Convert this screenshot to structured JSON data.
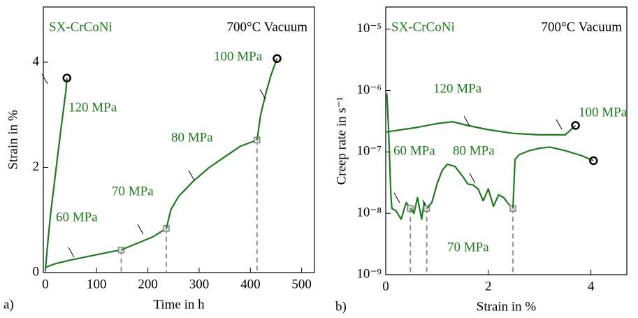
{
  "chart_data": [
    {
      "type": "line",
      "panel_label": "a)",
      "annotations": [
        "SX-CrCoNi",
        "700°C Vacuum"
      ],
      "x_label": "Time in h",
      "y_label": "Strain in %",
      "xlim": [
        -4,
        525
      ],
      "ylim": [
        0,
        5.05
      ],
      "xticks": [
        0,
        100,
        200,
        300,
        400,
        500
      ],
      "yticks": [
        0,
        2,
        4
      ],
      "log_y": false,
      "series": [
        {
          "name": "120 MPa",
          "color": "#1f7a1f",
          "marker": "circle",
          "x": [
            0,
            5,
            10,
            20,
            30,
            40,
            42
          ],
          "values": [
            0.05,
            0.6,
            1.1,
            1.9,
            2.7,
            3.45,
            3.7
          ]
        },
        {
          "name": "60 MPa",
          "color": "#1f7a1f",
          "marker": "square",
          "x": [
            0,
            20,
            50,
            80,
            110,
            130,
            148
          ],
          "values": [
            0.1,
            0.17,
            0.24,
            0.3,
            0.36,
            0.4,
            0.43
          ]
        },
        {
          "name": "70 MPa",
          "color": "#1f7a1f",
          "marker": "square",
          "x": [
            148,
            170,
            190,
            210,
            236
          ],
          "values": [
            0.43,
            0.52,
            0.6,
            0.68,
            0.84
          ]
        },
        {
          "name": "80 MPa",
          "color": "#1f7a1f",
          "marker": "square",
          "x": [
            236,
            245,
            260,
            290,
            320,
            350,
            380,
            413
          ],
          "values": [
            0.84,
            1.2,
            1.45,
            1.75,
            2.0,
            2.2,
            2.4,
            2.52
          ]
        },
        {
          "name": "100 MPa",
          "color": "#1f7a1f",
          "marker": "circle",
          "x": [
            413,
            420,
            430,
            440,
            452
          ],
          "values": [
            2.52,
            3.0,
            3.4,
            3.75,
            4.07
          ]
        }
      ]
    },
    {
      "type": "line",
      "panel_label": "b)",
      "annotations": [
        "SX-CrCoNi",
        "700°C Vacuum"
      ],
      "x_label": "Strain in %",
      "y_label": "Creep rate in s⁻¹",
      "xlim": [
        0,
        4.7
      ],
      "ylim": [
        1e-09,
        2.3e-05
      ],
      "xticks": [
        0,
        2,
        4
      ],
      "log_y": true,
      "yticks": [
        {
          "value": 1e-09,
          "label": "10⁻⁹"
        },
        {
          "value": 1e-08,
          "label": "10⁻⁸"
        },
        {
          "value": 1e-07,
          "label": "10⁻⁷"
        },
        {
          "value": 1e-06,
          "label": "10⁻⁶"
        },
        {
          "value": 1e-05,
          "label": "10⁻⁵"
        }
      ],
      "series": [
        {
          "name": "120 MPa",
          "color": "#1f7a1f",
          "marker": "circle",
          "x": [
            0,
            0.3,
            0.6,
            1.0,
            1.3,
            1.6,
            2.0,
            2.5,
            3.0,
            3.5,
            3.7
          ],
          "values": [
            2.1e-07,
            2.3e-07,
            2.5e-07,
            2.9e-07,
            3.1e-07,
            2.7e-07,
            2.3e-07,
            2e-07,
            1.9e-07,
            1.9e-07,
            2.7e-07
          ]
        },
        {
          "name": "60 MPa",
          "color": "#1f7a1f",
          "marker": "square",
          "x": [
            0.02,
            0.05,
            0.1,
            0.12,
            0.2,
            0.3,
            0.4,
            0.48
          ],
          "values": [
            9e-07,
            3e-07,
            2e-08,
            1.2e-08,
            1.1e-08,
            8e-09,
            1.5e-08,
            1.2e-08
          ]
        },
        {
          "name": "70 MPa",
          "color": "#1f7a1f",
          "marker": "square",
          "x": [
            0.48,
            0.55,
            0.62,
            0.7,
            0.75,
            0.8
          ],
          "values": [
            1.2e-08,
            1e-08,
            1.8e-08,
            8e-09,
            1.5e-08,
            1.2e-08
          ]
        },
        {
          "name": "80 MPa",
          "color": "#1f7a1f",
          "marker": "square",
          "x": [
            0.8,
            0.9,
            1.0,
            1.1,
            1.2,
            1.35,
            1.5,
            1.6,
            1.7,
            1.8,
            1.9,
            2.0,
            2.1,
            2.2,
            2.3,
            2.4,
            2.48
          ],
          "values": [
            1.2e-08,
            1.5e-08,
            3e-08,
            5e-08,
            6.3e-08,
            5.8e-08,
            4e-08,
            3e-08,
            2.9e-08,
            2.5e-08,
            1.6e-08,
            2.5e-08,
            1.3e-08,
            2e-08,
            1.8e-08,
            1.4e-08,
            1.2e-08
          ]
        },
        {
          "name": "100 MPa",
          "color": "#1f7a1f",
          "marker": "circle",
          "x": [
            2.48,
            2.52,
            2.6,
            2.8,
            3.0,
            3.2,
            3.5,
            3.8,
            4.05
          ],
          "values": [
            1.2e-08,
            7.5e-08,
            9e-08,
            1.05e-07,
            1.15e-07,
            1.2e-07,
            1.05e-07,
            8.8e-08,
            7.2e-08
          ]
        }
      ]
    }
  ]
}
